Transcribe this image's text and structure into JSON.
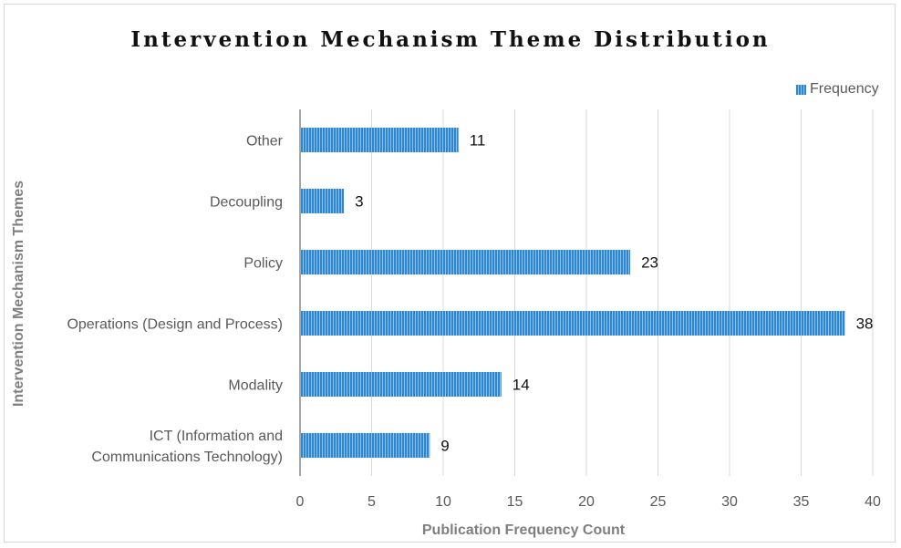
{
  "chart_data": {
    "type": "bar",
    "orientation": "horizontal",
    "title": "Intervention Mechanism Theme Distribution",
    "xlabel": "Publication Frequency Count",
    "ylabel": "Intervention Mechanism Themes",
    "categories": [
      "Other",
      "Decoupling",
      "Policy",
      "Operations (Design and Process)",
      "Modality",
      "ICT (Information and Communications Technology)"
    ],
    "category_lines": [
      [
        "Other"
      ],
      [
        "Decoupling"
      ],
      [
        "Policy"
      ],
      [
        "Operations (Design and Process)"
      ],
      [
        "Modality"
      ],
      [
        "ICT (Information and",
        "Communications Technology)"
      ]
    ],
    "series": [
      {
        "name": "Frequency",
        "values": [
          11,
          3,
          23,
          38,
          14,
          9
        ]
      }
    ],
    "xlim": [
      0,
      40
    ],
    "xticks": [
      0,
      5,
      10,
      15,
      20,
      25,
      30,
      35,
      40
    ],
    "grid": true,
    "legend": "top-right",
    "colors": {
      "bar": "#2e86d1",
      "bar_stripe": "#8cc3ee",
      "grid": "#d9d9d9",
      "axis": "#a6a6a6"
    }
  }
}
